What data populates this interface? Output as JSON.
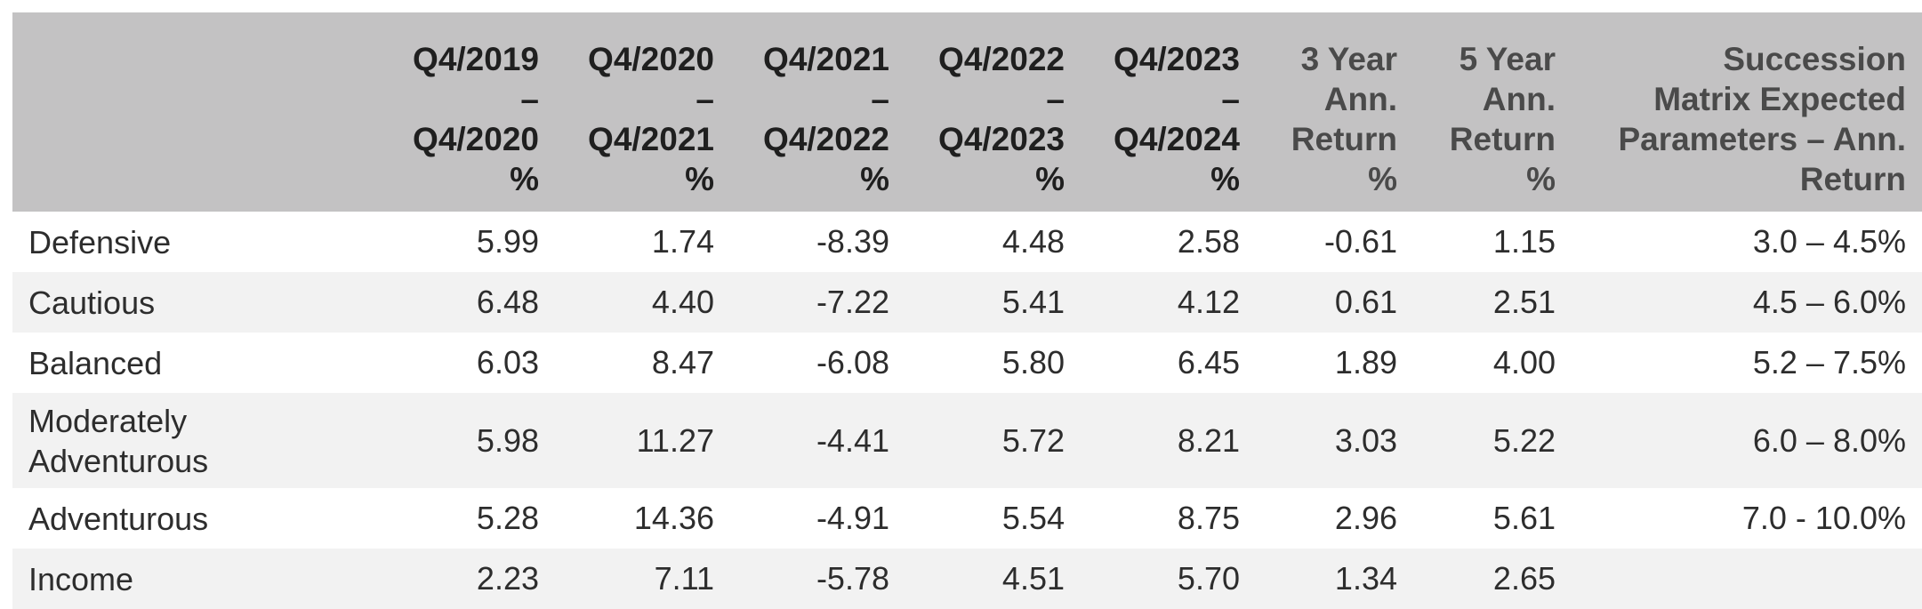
{
  "table": {
    "headers": {
      "col1": [
        "Q4/2019",
        "–",
        "Q4/2020",
        "%"
      ],
      "col2": [
        "Q4/2020",
        "–",
        "Q4/2021",
        "%"
      ],
      "col3": [
        "Q4/2021",
        "–",
        "Q4/2022",
        "%"
      ],
      "col4": [
        "Q4/2022",
        "–",
        "Q4/2023",
        "%"
      ],
      "col5": [
        "Q4/2023",
        "–",
        "Q4/2024",
        "%"
      ],
      "col6": [
        "3 Year",
        "Ann.",
        "Return",
        "%"
      ],
      "col7": [
        "5 Year",
        "Ann.",
        "Return",
        "%"
      ],
      "col8": [
        "Succession",
        "Matrix Expected",
        "Parameters – Ann.",
        "Return"
      ]
    },
    "rows": [
      {
        "label": "Defensive",
        "values": [
          "5.99",
          "1.74",
          "-8.39",
          "4.48",
          "2.58",
          "-0.61",
          "1.15",
          "3.0 – 4.5%"
        ]
      },
      {
        "label": "Cautious",
        "values": [
          "6.48",
          "4.40",
          "-7.22",
          "5.41",
          "4.12",
          "0.61",
          "2.51",
          "4.5 – 6.0%"
        ]
      },
      {
        "label": "Balanced",
        "values": [
          "6.03",
          "8.47",
          "-6.08",
          "5.80",
          "6.45",
          "1.89",
          "4.00",
          "5.2 – 7.5%"
        ]
      },
      {
        "label": "Moderately Adventurous",
        "values": [
          "5.98",
          "11.27",
          "-4.41",
          "5.72",
          "8.21",
          "3.03",
          "5.22",
          "6.0 – 8.0%"
        ]
      },
      {
        "label": "Adventurous",
        "values": [
          "5.28",
          "14.36",
          "-4.91",
          "5.54",
          "8.75",
          "2.96",
          "5.61",
          "7.0 - 10.0%"
        ]
      },
      {
        "label": "Income",
        "values": [
          "2.23",
          "7.11",
          "-5.78",
          "4.51",
          "5.70",
          "1.34",
          "2.65",
          ""
        ]
      }
    ]
  }
}
